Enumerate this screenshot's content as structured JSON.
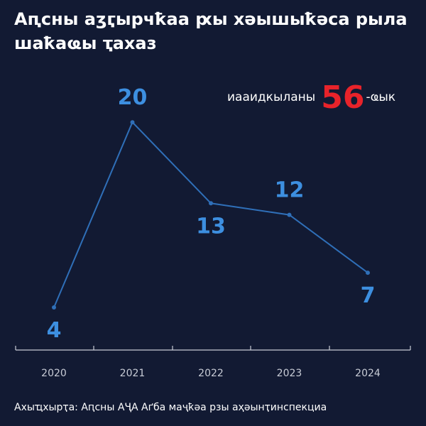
{
  "title": "Аԥсны аӡӷырчҟаа ԗы хәышыҟәса рыла шаҟаҩы ҭахаз",
  "total": {
    "prefix": "иааидкыланы",
    "value": "56",
    "suffix": "-ҩык"
  },
  "source": "Ахыҵхырҭа: Аԥсны АҶА Аґба маҷҟәа рзы аҳәынҭинспекциа",
  "colors": {
    "background": "#121a33",
    "line": "#2f6fb8",
    "label": "#3d8fe0",
    "accent": "#e8232a",
    "axis": "#c8ccd6"
  },
  "chart_data": {
    "type": "line",
    "categories": [
      "2020",
      "2021",
      "2022",
      "2023",
      "2024"
    ],
    "series": [
      {
        "values": [
          4,
          20,
          13,
          12,
          7
        ]
      }
    ],
    "value_labels": [
      "4",
      "20",
      "13",
      "12",
      "7"
    ],
    "ylim": [
      0,
      24
    ],
    "grid": false,
    "legend": "none"
  }
}
